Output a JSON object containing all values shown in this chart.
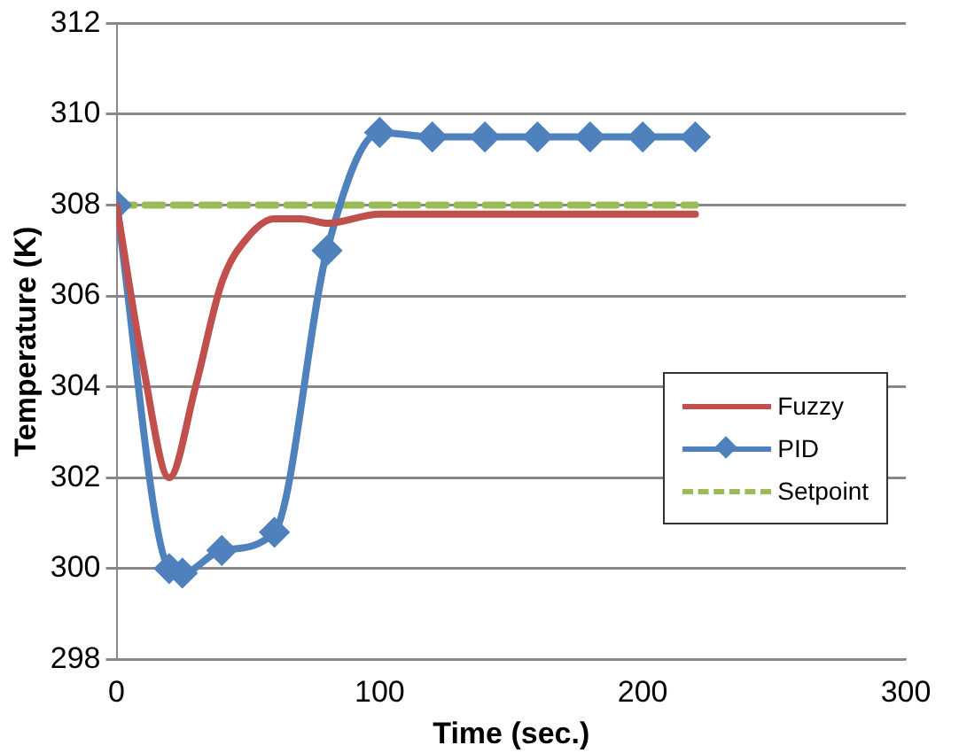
{
  "chart_data": {
    "type": "line",
    "xlabel": "Time (sec.)",
    "ylabel": "Temperature (K)",
    "xlim": [
      0,
      300
    ],
    "xticks": [
      0,
      100,
      200,
      300
    ],
    "ylim": [
      298,
      312
    ],
    "yticks": [
      298,
      300,
      302,
      304,
      306,
      308,
      310,
      312
    ],
    "grid": "y",
    "legend": "right",
    "series": [
      {
        "name": "Fuzzy",
        "color": "#c0504d",
        "marker": "none",
        "line_style": "solid",
        "x": [
          0,
          10,
          20,
          30,
          40,
          50,
          60,
          70,
          80,
          100,
          120,
          140,
          160,
          180,
          200,
          220
        ],
        "values": [
          308,
          304.5,
          302,
          304,
          306.3,
          307.3,
          307.7,
          307.7,
          307.6,
          307.8,
          307.8,
          307.8,
          307.8,
          307.8,
          307.8,
          307.8
        ]
      },
      {
        "name": "PID",
        "color": "#4f81bd",
        "marker": "diamond",
        "line_style": "solid",
        "x": [
          0,
          20,
          25,
          40,
          60,
          80,
          100,
          120,
          140,
          160,
          180,
          200,
          220
        ],
        "values": [
          308,
          300,
          299.9,
          300.4,
          300.8,
          307,
          309.6,
          309.5,
          309.5,
          309.5,
          309.5,
          309.5,
          309.5
        ]
      },
      {
        "name": "Setpoint",
        "color": "#9bbb59",
        "marker": "none",
        "line_style": "dashed",
        "x": [
          0,
          220
        ],
        "values": [
          308,
          308
        ]
      }
    ]
  }
}
